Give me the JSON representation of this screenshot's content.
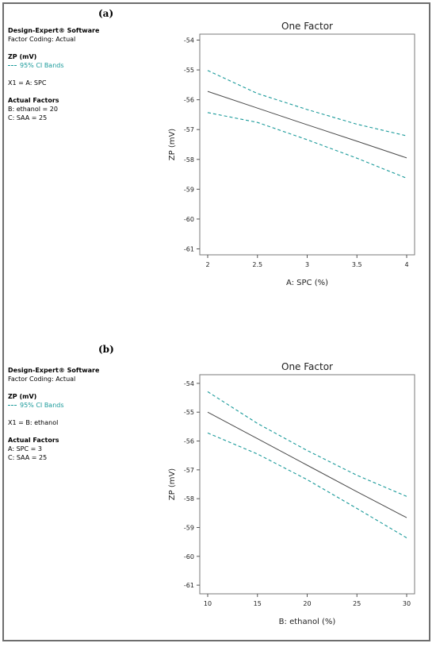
{
  "panels": [
    {
      "label": "(a)",
      "info": {
        "software": "Design-Expert® Software",
        "coding": "Factor Coding: Actual",
        "response": "ZP (mV)",
        "ci_label": "95% CI Bands",
        "x1": "X1 = A: SPC",
        "actual_title": "Actual Factors",
        "actual": [
          "B: ethanol = 20",
          "C: SAA = 25"
        ]
      }
    },
    {
      "label": "(b)",
      "info": {
        "software": "Design-Expert® Software",
        "coding": "Factor Coding: Actual",
        "response": "ZP (mV)",
        "ci_label": "95% CI Bands",
        "x1": "X1 = B: ethanol",
        "actual_title": "Actual Factors",
        "actual": [
          "A: SPC = 3",
          "C: SAA = 25"
        ]
      }
    }
  ],
  "chart_data": [
    {
      "type": "line",
      "title": "One Factor",
      "xlabel": "A: SPC (%)",
      "ylabel": "ZP (mV)",
      "xlim": [
        2,
        4
      ],
      "ylim": [
        -61.2,
        -53.8
      ],
      "xticks": [
        2,
        2.5,
        3,
        3.5,
        4
      ],
      "xtick_labels": [
        "2",
        "2.5",
        "3",
        "3.5",
        "4"
      ],
      "yticks": [
        -54,
        -55,
        -56,
        -57,
        -58,
        -59,
        -60,
        -61
      ],
      "ytick_labels": [
        "-54",
        "-55",
        "-56",
        "-57",
        "-58",
        "-59",
        "-60",
        "-61"
      ],
      "x": [
        2,
        2.5,
        3,
        3.5,
        4
      ],
      "series": [
        {
          "values": [
            -55.72,
            -56.28,
            -56.84,
            -57.39,
            -57.95
          ],
          "color": "#4a4a4a",
          "dash": "none"
        },
        {
          "values": [
            -55.02,
            -55.79,
            -56.33,
            -56.82,
            -57.21
          ],
          "color": "#1a9a9a",
          "dash": "4,3"
        },
        {
          "values": [
            -56.43,
            -56.76,
            -57.34,
            -57.96,
            -58.63
          ],
          "color": "#1a9a9a",
          "dash": "4,3"
        }
      ]
    },
    {
      "type": "line",
      "title": "One Factor",
      "xlabel": "B: ethanol (%)",
      "ylabel": "ZP (mV)",
      "xlim": [
        10,
        30
      ],
      "ylim": [
        -61.3,
        -53.7
      ],
      "xticks": [
        10,
        15,
        20,
        25,
        30
      ],
      "xtick_labels": [
        "10",
        "15",
        "20",
        "25",
        "30"
      ],
      "yticks": [
        -54,
        -55,
        -56,
        -57,
        -58,
        -59,
        -60,
        -61
      ],
      "ytick_labels": [
        "-54",
        "-55",
        "-56",
        "-57",
        "-58",
        "-59",
        "-60",
        "-61"
      ],
      "x": [
        10,
        15,
        20,
        25,
        30
      ],
      "series": [
        {
          "values": [
            -55.0,
            -55.92,
            -56.84,
            -57.76,
            -58.66
          ],
          "color": "#4a4a4a",
          "dash": "none"
        },
        {
          "values": [
            -54.29,
            -55.39,
            -56.33,
            -57.19,
            -57.92
          ],
          "color": "#1a9a9a",
          "dash": "4,3"
        },
        {
          "values": [
            -55.72,
            -56.45,
            -57.34,
            -58.34,
            -59.36
          ],
          "color": "#1a9a9a",
          "dash": "4,3"
        }
      ]
    }
  ]
}
